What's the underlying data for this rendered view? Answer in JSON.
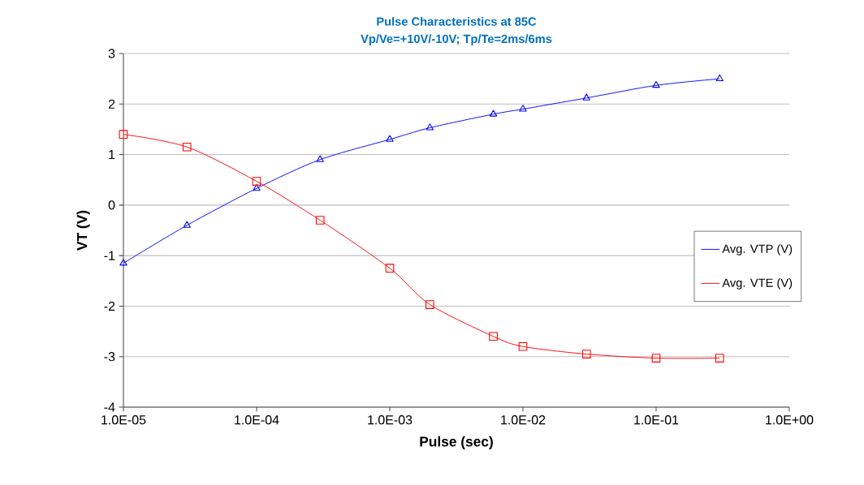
{
  "chart_data": {
    "type": "line",
    "title": "Pulse Characteristics at 85C",
    "subtitle": "Vp/Ve=+10V/-10V; Tp/Te=2ms/6ms",
    "xlabel": "Pulse (sec)",
    "ylabel": "VT (V)",
    "x": [
      1e-05,
      3e-05,
      0.0001,
      0.0003,
      0.001,
      0.002,
      0.006,
      0.01,
      0.03,
      0.1,
      0.3
    ],
    "series": [
      {
        "name": "Avg. VTP (V)",
        "color": "#0000ff",
        "marker": "triangle",
        "values": [
          -1.15,
          -0.4,
          0.33,
          0.9,
          1.3,
          1.53,
          1.8,
          1.9,
          2.12,
          2.37,
          2.5
        ]
      },
      {
        "name": "Avg. VTE (V)",
        "color": "#ff0000",
        "marker": "square",
        "values": [
          1.4,
          1.15,
          0.47,
          -0.3,
          -1.25,
          -1.97,
          -2.6,
          -2.8,
          -2.95,
          -3.03,
          -3.03
        ]
      }
    ],
    "log": "x",
    "xlim": [
      1e-05,
      1
    ],
    "xticks": [
      {
        "value": 1e-05,
        "label": "1.0E-05"
      },
      {
        "value": 0.0001,
        "label": "1.0E-04"
      },
      {
        "value": 0.001,
        "label": "1.0E-03"
      },
      {
        "value": 0.01,
        "label": "1.0E-02"
      },
      {
        "value": 0.1,
        "label": "1.0E-01"
      },
      {
        "value": 1,
        "label": "1.0E+00"
      }
    ],
    "ylim": [
      -4,
      3
    ],
    "yticks": [
      -4,
      -3,
      -2,
      -1,
      0,
      1,
      2,
      3
    ],
    "grid": "y",
    "legend": "right"
  }
}
